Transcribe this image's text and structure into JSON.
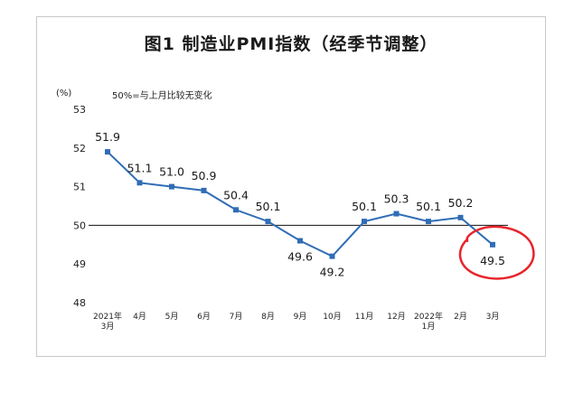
{
  "title": "图1 制造业PMI指数（经季节调整）",
  "unit_label": "(%)",
  "note": "50%=与上月比较无变化",
  "chart_data": {
    "type": "line",
    "categories": [
      [
        "2021年",
        "3月"
      ],
      [
        "4月"
      ],
      [
        "5月"
      ],
      [
        "6月"
      ],
      [
        "7月"
      ],
      [
        "8月"
      ],
      [
        "9月"
      ],
      [
        "10月"
      ],
      [
        "11月"
      ],
      [
        "12月"
      ],
      [
        "2022年",
        "1月"
      ],
      [
        "2月"
      ],
      [
        "3月"
      ]
    ],
    "series": [
      {
        "values": [
          51.9,
          51.1,
          51.0,
          50.9,
          50.4,
          50.1,
          49.6,
          49.2,
          50.1,
          50.3,
          50.1,
          50.2,
          49.5
        ]
      }
    ],
    "data_labels": [
      "51.9",
      "51.1",
      "51.0",
      "50.9",
      "50.4",
      "50.1",
      "49.6",
      "49.2",
      "50.1",
      "50.3",
      "50.1",
      "50.2",
      "49.5"
    ],
    "y_ticks": [
      "53",
      "52",
      "51",
      "50",
      "49",
      "48"
    ],
    "ylim": [
      48,
      53
    ],
    "reference_line": 50,
    "line_color": "#2f6db5",
    "highlight_color": "#e8242b"
  }
}
